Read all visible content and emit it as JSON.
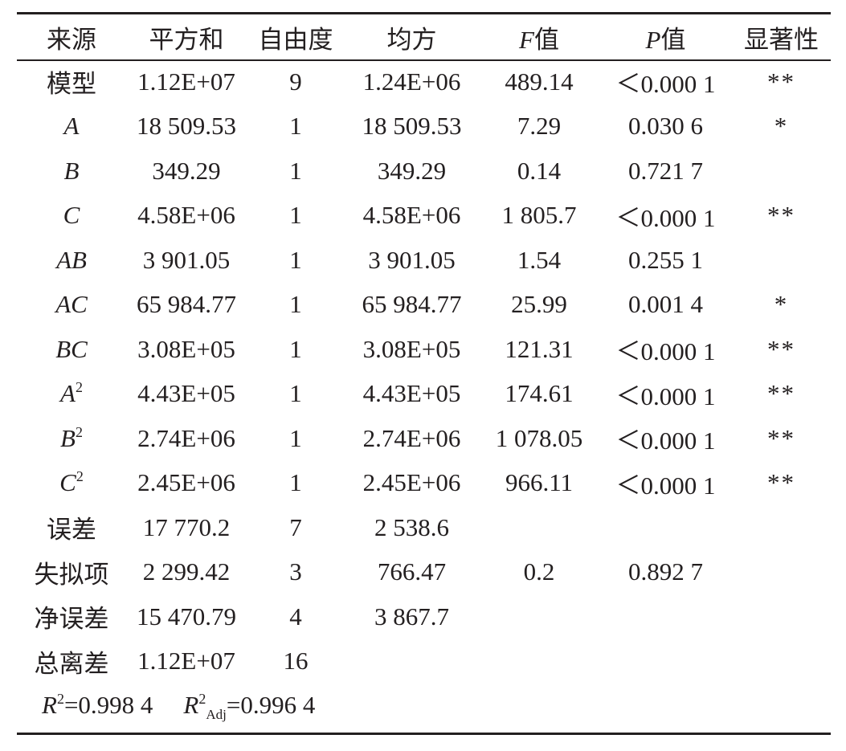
{
  "header": {
    "source": "来源",
    "ss": "平方和",
    "df": "自由度",
    "ms": "均方",
    "f_letter": "F",
    "f_suffix": "值",
    "p_letter": "P",
    "p_suffix": "值",
    "sig": "显著性"
  },
  "rows": [
    {
      "source": "模型",
      "ss": "1.12E+07",
      "df": "9",
      "ms": "1.24E+06",
      "f": "489.14",
      "p": "＜0.000 1",
      "sig": "**"
    },
    {
      "source": "A",
      "ss": "18 509.53",
      "df": "1",
      "ms": "18 509.53",
      "f": "7.29",
      "p": "0.030 6",
      "sig": "*"
    },
    {
      "source": "B",
      "ss": "349.29",
      "df": "1",
      "ms": "349.29",
      "f": "0.14",
      "p": "0.721 7",
      "sig": ""
    },
    {
      "source": "C",
      "ss": "4.58E+06",
      "df": "1",
      "ms": "4.58E+06",
      "f": "1 805.7",
      "p": "＜0.000 1",
      "sig": "**"
    },
    {
      "source": "AB",
      "ss": "3 901.05",
      "df": "1",
      "ms": "3 901.05",
      "f": "1.54",
      "p": "0.255 1",
      "sig": ""
    },
    {
      "source": "AC",
      "ss": "65 984.77",
      "df": "1",
      "ms": "65 984.77",
      "f": "25.99",
      "p": "0.001 4",
      "sig": "*"
    },
    {
      "source": "BC",
      "ss": "3.08E+05",
      "df": "1",
      "ms": "3.08E+05",
      "f": "121.31",
      "p": "＜0.000 1",
      "sig": "**"
    },
    {
      "source": "A",
      "source_sup": "2",
      "ss": "4.43E+05",
      "df": "1",
      "ms": "4.43E+05",
      "f": "174.61",
      "p": "＜0.000 1",
      "sig": "**"
    },
    {
      "source": "B",
      "source_sup": "2",
      "ss": "2.74E+06",
      "df": "1",
      "ms": "2.74E+06",
      "f": "1 078.05",
      "p": "＜0.000 1",
      "sig": "**"
    },
    {
      "source": "C",
      "source_sup": "2",
      "ss": "2.45E+06",
      "df": "1",
      "ms": "2.45E+06",
      "f": "966.11",
      "p": "＜0.000 1",
      "sig": "**"
    },
    {
      "source": "误差",
      "ss": "17 770.2",
      "df": "7",
      "ms": "2 538.6",
      "f": "",
      "p": "",
      "sig": ""
    },
    {
      "source": "失拟项",
      "ss": "2 299.42",
      "df": "3",
      "ms": "766.47",
      "f": "0.2",
      "p": "0.892 7",
      "sig": ""
    },
    {
      "source": "净误差",
      "ss": "15 470.79",
      "df": "4",
      "ms": "3 867.7",
      "f": "",
      "p": "",
      "sig": ""
    },
    {
      "source": "总离差",
      "ss": "1.12E+07",
      "df": "16",
      "ms": "",
      "f": "",
      "p": "",
      "sig": ""
    }
  ],
  "summary": {
    "r2_letter": "R",
    "r2_sup": "2",
    "r2_value": "=0.998 4",
    "r2adj_letter": "R",
    "r2adj_sup": "2",
    "r2adj_sub": "Adj",
    "r2adj_value": "=0.996 4"
  }
}
